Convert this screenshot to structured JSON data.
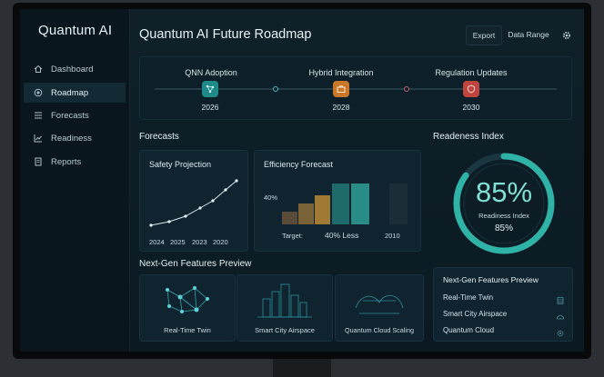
{
  "app": {
    "brand": "Quantum AI",
    "page_title": "Quantum AI Future Roadmap"
  },
  "toolbar": {
    "export_label": "Export",
    "date_range_label": "Data Range",
    "settings_icon": "gear-icon"
  },
  "sidebar": {
    "items": [
      {
        "label": "Dashboard",
        "icon": "home-icon",
        "active": false
      },
      {
        "label": "Roadmap",
        "icon": "target-icon",
        "active": true
      },
      {
        "label": "Forecasts",
        "icon": "list-icon",
        "active": false
      },
      {
        "label": "Readiness",
        "icon": "chart-icon",
        "active": false
      },
      {
        "label": "Reports",
        "icon": "document-icon",
        "active": false
      }
    ]
  },
  "roadmap": {
    "milestones": [
      {
        "label": "QNN Adoption",
        "year": "2026",
        "icon": "network-icon",
        "color": "#1e8a8a"
      },
      {
        "label": "Hybrid Integration",
        "year": "2028",
        "icon": "briefcase-icon",
        "color": "#c9782a"
      },
      {
        "label": "Regulation Updates",
        "year": "2030",
        "icon": "shield-icon",
        "color": "#c0453f"
      }
    ]
  },
  "forecasts": {
    "heading": "Forecasts",
    "safety": {
      "title": "Safety Projection",
      "x_labels": [
        "2024",
        "2025",
        "2023",
        "2020"
      ]
    },
    "efficiency": {
      "title": "Efficiency Forecast",
      "axis_label": "40%",
      "target_label": "Target:",
      "target_value": "40% Less",
      "end_label": "2010"
    }
  },
  "readiness": {
    "heading": "Readeness Index",
    "value": "85%",
    "sub_label": "Readiness Index",
    "sub_value": "85%",
    "fraction": 0.85
  },
  "features": {
    "heading": "Next-Gen Features Preview",
    "cards": [
      {
        "label": "Real-Time Twin",
        "icon": "network-icon"
      },
      {
        "label": "Smart City Airspace",
        "icon": "city-icon"
      },
      {
        "label": "Quantum Cloud Scaling",
        "icon": "cloud-icon"
      }
    ],
    "list_title": "Next-Gen Features Preview",
    "list": [
      {
        "label": "Real-Time Twin",
        "icon": "table-icon"
      },
      {
        "label": "Smart City Airspace",
        "icon": "cloud-icon"
      },
      {
        "label": "Quantum Cloud",
        "icon": "gear-icon"
      }
    ]
  },
  "colors": {
    "accent": "#2fb3a6",
    "background": "#0b1a22",
    "panel": "#102430"
  }
}
